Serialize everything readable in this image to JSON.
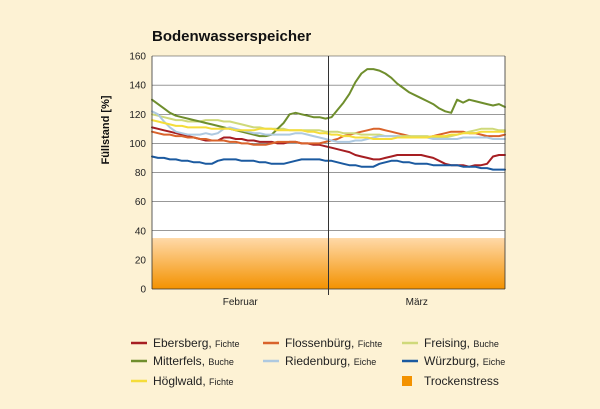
{
  "chart_data": {
    "type": "line",
    "title": "Bodenwasserspeicher",
    "ylabel": "Füllstand [%]",
    "xlabel": "",
    "ylim": [
      0,
      160
    ],
    "yticks": [
      0,
      20,
      40,
      60,
      80,
      100,
      120,
      140,
      160
    ],
    "categories": [
      "Februar",
      "März"
    ],
    "grid": true,
    "legend_position": "bottom",
    "trockenstress": {
      "label": "Trockenstress",
      "range": [
        0,
        35
      ],
      "color": "#f39200"
    },
    "x": [
      1,
      2,
      3,
      4,
      5,
      6,
      7,
      8,
      9,
      10,
      11,
      12,
      13,
      14,
      15,
      16,
      17,
      18,
      19,
      20,
      21,
      22,
      23,
      24,
      25,
      26,
      27,
      28,
      29,
      30,
      31,
      32,
      33,
      34,
      35,
      36,
      37,
      38,
      39,
      40,
      41,
      42,
      43,
      44,
      45,
      46,
      47,
      48,
      49,
      50,
      51,
      52,
      53,
      54,
      55,
      56,
      57,
      58,
      59,
      60
    ],
    "series": [
      {
        "name": "Ebersberg",
        "species": "Fichte",
        "color": "#a61e22",
        "values": [
          111,
          110,
          109,
          108,
          107,
          106,
          105,
          104,
          103,
          102,
          102,
          102,
          104,
          104,
          103,
          103,
          102,
          102,
          101,
          101,
          101,
          100,
          100,
          101,
          101,
          100,
          100,
          99,
          99,
          98,
          97,
          96,
          95,
          94,
          92,
          91,
          90,
          89,
          89,
          90,
          91,
          92,
          92,
          92,
          92,
          92,
          91,
          90,
          88,
          86,
          85,
          85,
          85,
          84,
          85,
          85,
          86,
          91,
          92,
          92
        ]
      },
      {
        "name": "Flossenbürg",
        "species": "Fichte",
        "color": "#d9632b",
        "values": [
          108,
          107,
          106,
          106,
          105,
          105,
          104,
          104,
          103,
          103,
          102,
          102,
          102,
          101,
          101,
          100,
          100,
          99,
          99,
          99,
          100,
          101,
          101,
          101,
          101,
          100,
          100,
          100,
          100,
          101,
          102,
          103,
          105,
          106,
          107,
          108,
          109,
          110,
          110,
          109,
          108,
          107,
          106,
          105,
          104,
          104,
          104,
          105,
          106,
          107,
          108,
          108,
          108,
          107,
          107,
          106,
          105,
          105,
          105,
          106
        ]
      },
      {
        "name": "Freising",
        "species": "Buche",
        "color": "#cfd97a",
        "values": [
          120,
          119,
          118,
          117,
          116,
          116,
          115,
          115,
          115,
          116,
          116,
          116,
          115,
          115,
          114,
          113,
          112,
          111,
          111,
          110,
          110,
          110,
          110,
          109,
          109,
          109,
          109,
          109,
          109,
          108,
          108,
          108,
          107,
          107,
          107,
          106,
          106,
          106,
          106,
          105,
          105,
          105,
          105,
          105,
          105,
          105,
          105,
          104,
          104,
          104,
          105,
          106,
          107,
          108,
          109,
          110,
          110,
          110,
          109,
          109
        ]
      },
      {
        "name": "Mitterfels",
        "species": "Buche",
        "color": "#6f8e2d",
        "values": [
          130,
          127,
          124,
          121,
          119,
          118,
          117,
          116,
          115,
          114,
          113,
          112,
          111,
          110,
          109,
          108,
          107,
          106,
          105,
          105,
          106,
          110,
          114,
          120,
          121,
          120,
          119,
          118,
          118,
          117,
          118,
          123,
          128,
          134,
          142,
          148,
          151,
          151,
          150,
          148,
          145,
          141,
          138,
          135,
          133,
          131,
          129,
          127,
          124,
          122,
          121,
          130,
          128,
          130,
          129,
          128,
          127,
          126,
          127,
          125
        ]
      },
      {
        "name": "Riedenburg",
        "species": "Eiche",
        "color": "#aec9e0",
        "values": [
          122,
          120,
          115,
          111,
          108,
          107,
          106,
          106,
          106,
          107,
          106,
          107,
          110,
          111,
          110,
          109,
          108,
          107,
          107,
          106,
          106,
          106,
          106,
          106,
          107,
          107,
          106,
          105,
          104,
          103,
          102,
          101,
          101,
          101,
          102,
          102,
          103,
          104,
          105,
          105,
          105,
          105,
          104,
          104,
          104,
          104,
          104,
          103,
          103,
          103,
          103,
          103,
          104,
          104,
          104,
          104,
          104,
          103,
          103,
          103
        ]
      },
      {
        "name": "Würzburg",
        "species": "Eiche",
        "color": "#1b5aa0",
        "values": [
          91,
          90,
          90,
          89,
          89,
          88,
          88,
          87,
          87,
          86,
          86,
          88,
          89,
          89,
          89,
          88,
          88,
          88,
          87,
          87,
          86,
          86,
          86,
          87,
          88,
          89,
          89,
          89,
          89,
          88,
          88,
          87,
          86,
          85,
          85,
          84,
          84,
          84,
          86,
          87,
          88,
          88,
          87,
          87,
          86,
          86,
          86,
          85,
          85,
          85,
          85,
          85,
          84,
          84,
          84,
          83,
          83,
          82,
          82,
          82
        ]
      },
      {
        "name": "Höglwald",
        "species": "Fichte",
        "color": "#f5dd3a",
        "values": [
          116,
          115,
          114,
          113,
          112,
          112,
          111,
          111,
          111,
          111,
          110,
          110,
          110,
          110,
          109,
          109,
          109,
          109,
          110,
          110,
          110,
          109,
          109,
          109,
          109,
          109,
          108,
          108,
          107,
          107,
          106,
          106,
          105,
          105,
          104,
          104,
          104,
          103,
          103,
          103,
          103,
          104,
          104,
          104,
          104,
          104,
          104,
          105,
          105,
          105,
          106,
          106,
          107,
          107,
          107,
          108,
          108,
          108,
          108,
          108
        ]
      }
    ]
  }
}
